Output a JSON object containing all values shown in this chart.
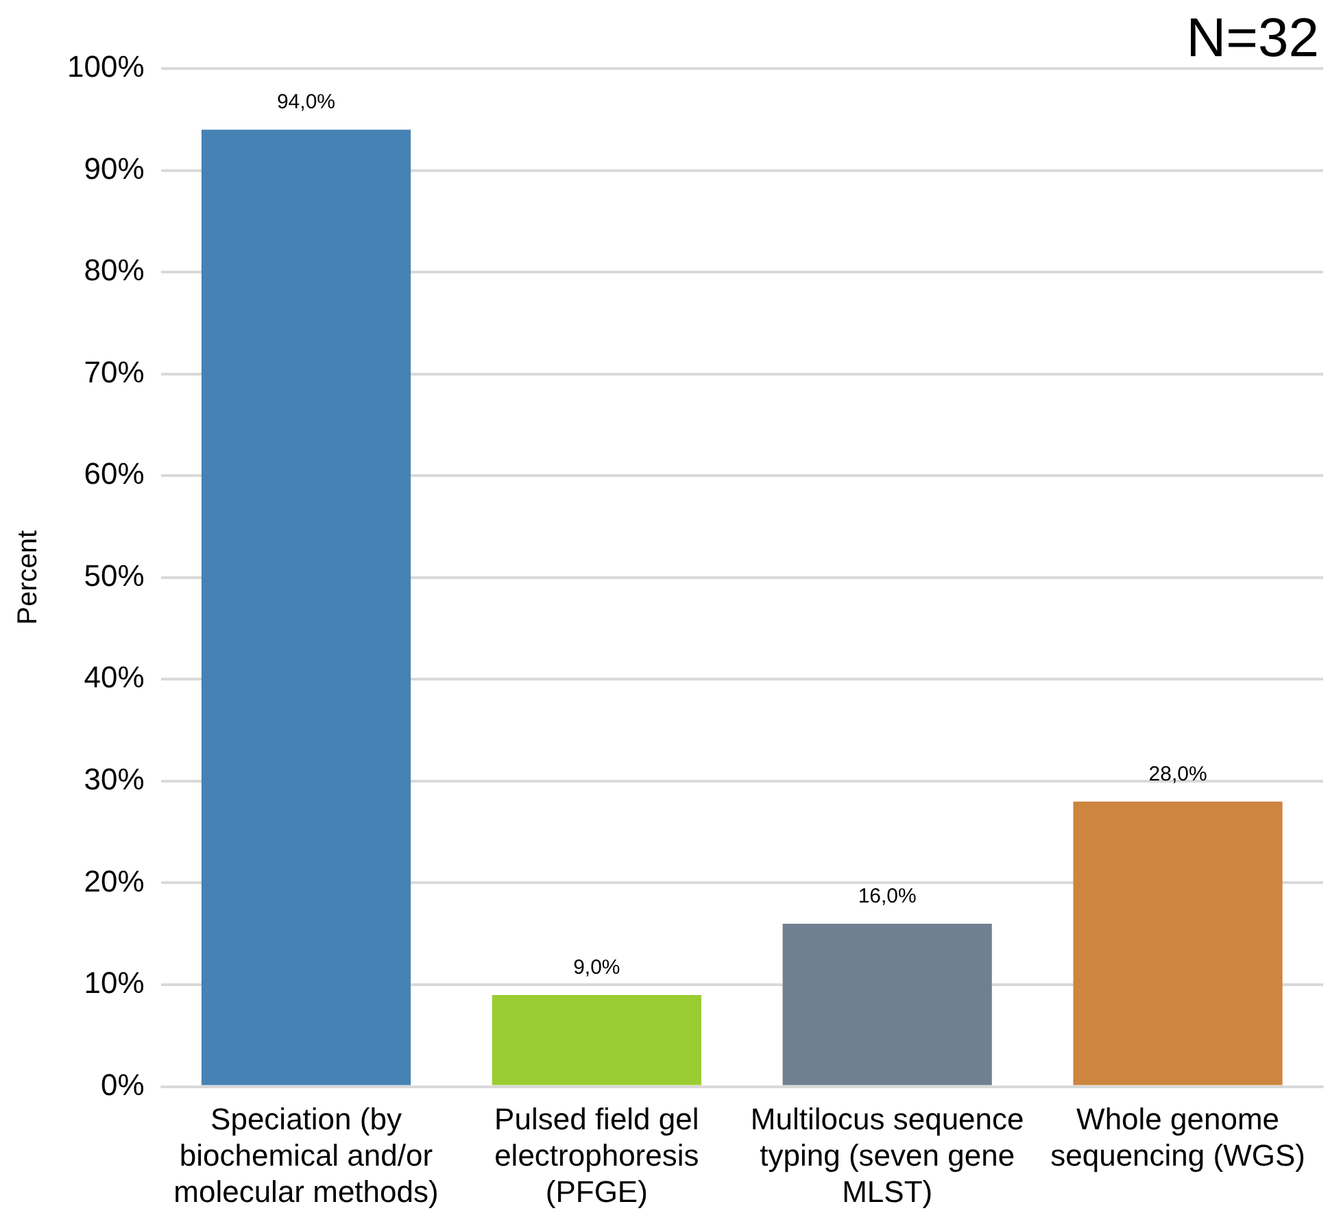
{
  "chart_data": {
    "type": "bar",
    "categories": [
      "Speciation (by biochemical and/or molecular methods)",
      "Pulsed field gel electrophoresis (PFGE)",
      "Multilocus sequence typing (seven gene MLST)",
      "Whole genome sequencing (WGS)"
    ],
    "values": [
      94,
      9,
      16,
      28
    ],
    "colors": [
      "#4682b4",
      "#9acd32",
      "#708090",
      "#cd853f"
    ],
    "value_labels": [
      "94,0%",
      "9,0%",
      "16,0%",
      "28,0%"
    ],
    "ylabel": "Percent",
    "ylim": [
      0,
      100
    ],
    "yticks": [
      {
        "value": 0,
        "label": "0%"
      },
      {
        "value": 10,
        "label": "10%"
      },
      {
        "value": 20,
        "label": "20%"
      },
      {
        "value": 30,
        "label": "30%"
      },
      {
        "value": 40,
        "label": "40%"
      },
      {
        "value": 50,
        "label": "50%"
      },
      {
        "value": 60,
        "label": "60%"
      },
      {
        "value": 70,
        "label": "70%"
      },
      {
        "value": 80,
        "label": "80%"
      },
      {
        "value": 90,
        "label": "90%"
      },
      {
        "value": 100,
        "label": "100%"
      }
    ],
    "grid": "y",
    "annotations": [
      "N=32"
    ]
  }
}
